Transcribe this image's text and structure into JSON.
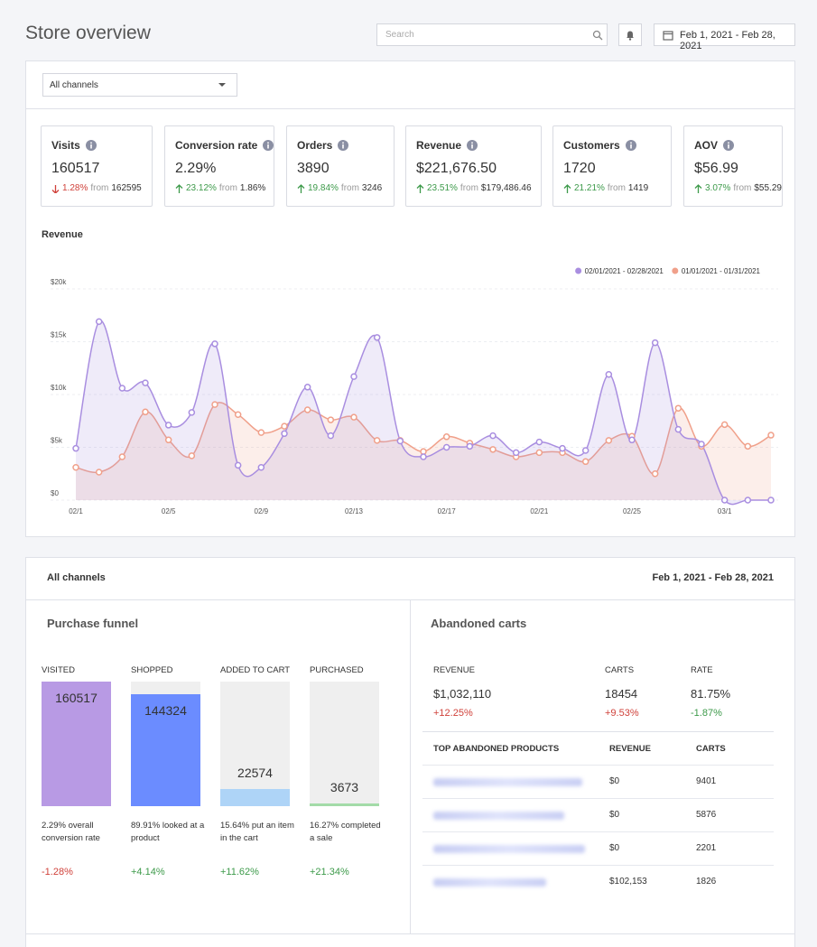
{
  "header": {
    "title": "Store overview",
    "search_placeholder": "Search",
    "date_range": "Feb 1, 2021 - Feb 28, 2021"
  },
  "filter": {
    "channel": "All channels"
  },
  "kpis": [
    {
      "title": "Visits",
      "value": "160517",
      "direction": "down",
      "change": "1.28%",
      "change_color": "#d0413a",
      "from": "from",
      "previous": "162595"
    },
    {
      "title": "Conversion rate",
      "value": "2.29%",
      "direction": "up",
      "change": "23.12%",
      "change_color": "#3d9a4a",
      "from": "from",
      "previous": "1.86%"
    },
    {
      "title": "Orders",
      "value": "3890",
      "direction": "up",
      "change": "19.84%",
      "change_color": "#3d9a4a",
      "from": "from",
      "previous": "3246"
    },
    {
      "title": "Revenue",
      "value": "$221,676.50",
      "direction": "up",
      "change": "23.51%",
      "change_color": "#3d9a4a",
      "from": "from",
      "previous": "$179,486.46"
    },
    {
      "title": "Customers",
      "value": "1720",
      "direction": "up",
      "change": "21.21%",
      "change_color": "#3d9a4a",
      "from": "from",
      "previous": "1419"
    },
    {
      "title": "AOV",
      "value": "$56.99",
      "direction": "up",
      "change": "3.07%",
      "change_color": "#3d9a4a",
      "from": "from",
      "previous": "$55.29"
    }
  ],
  "chart_data": {
    "type": "line",
    "title": "Revenue",
    "categories": [
      "02/1",
      null,
      null,
      null,
      "02/5",
      null,
      null,
      null,
      "02/9",
      null,
      null,
      null,
      "02/13",
      null,
      null,
      null,
      "02/17",
      null,
      null,
      null,
      "02/21",
      null,
      null,
      null,
      "02/25",
      null,
      null,
      null,
      "03/1",
      null,
      null
    ],
    "series": [
      {
        "name": "02/01/2021 - 02/28/2021",
        "color": "#a98ee0",
        "values": [
          4900,
          16900,
          10600,
          11100,
          7100,
          8300,
          14800,
          3300,
          3100,
          6300,
          10700,
          6100,
          11700,
          15400,
          5600,
          4100,
          5000,
          5100,
          6100,
          4500,
          5500,
          4900,
          4700,
          11900,
          5700,
          14900,
          6700,
          5300,
          0,
          0,
          0
        ]
      },
      {
        "name": "01/01/2021 - 01/31/2021",
        "color": "#f0a08a",
        "values": [
          3100,
          2650,
          4100,
          8350,
          5700,
          4200,
          9050,
          8100,
          6400,
          7000,
          8550,
          7600,
          7850,
          5650,
          5650,
          4600,
          6000,
          5400,
          4800,
          4100,
          4500,
          4500,
          3650,
          5650,
          6050,
          2500,
          8700,
          5100,
          7150,
          5100,
          6150
        ]
      }
    ],
    "ylim": [
      0,
      20000
    ],
    "yticks": [
      {
        "value": 0,
        "label": "$0"
      },
      {
        "value": 5000,
        "label": "$5k"
      },
      {
        "value": 10000,
        "label": "$10k"
      },
      {
        "value": 15000,
        "label": "$15k"
      },
      {
        "value": 20000,
        "label": "$20k"
      }
    ],
    "grid": true,
    "legend": "top-right",
    "area": true,
    "smooth": true
  },
  "report": {
    "channel": "All channels",
    "date_range": "Feb 1, 2021 - Feb 28, 2021"
  },
  "funnel": {
    "title": "Purchase funnel",
    "steps": [
      {
        "label": "VISITED",
        "value": 160517,
        "color": "#b89ae4",
        "description": "2.29% overall conversion rate",
        "change": "-1.28%",
        "change_color": "#d0413a"
      },
      {
        "label": "SHOPPED",
        "value": 144324,
        "color": "#6b8cff",
        "description": "89.91% looked at a product",
        "change": "+4.14%",
        "change_color": "#3d9a4a"
      },
      {
        "label": "ADDED TO CART",
        "value": 22574,
        "color": "#aed4f7",
        "description": "15.64% put an item in the cart",
        "change": "+11.62%",
        "change_color": "#3d9a4a"
      },
      {
        "label": "PURCHASED",
        "value": 3673,
        "color": "#a3dba8",
        "description": "16.27% completed a sale",
        "change": "+21.34%",
        "change_color": "#3d9a4a"
      }
    ]
  },
  "abandoned": {
    "title": "Abandoned carts",
    "metrics": [
      {
        "label": "REVENUE",
        "value": "$1,032,110",
        "change": "+12.25%",
        "change_color": "#d0413a"
      },
      {
        "label": "CARTS",
        "value": "18454",
        "change": "+9.53%",
        "change_color": "#d0413a"
      },
      {
        "label": "RATE",
        "value": "81.75%",
        "change": "-1.87%",
        "change_color": "#3d9a4a"
      }
    ],
    "table": {
      "columns": [
        "TOP ABANDONED PRODUCTS",
        "REVENUE",
        "CARTS"
      ],
      "rows": [
        {
          "revenue": "$0",
          "carts": "9401"
        },
        {
          "revenue": "$0",
          "carts": "5876"
        },
        {
          "revenue": "$0",
          "carts": "2201"
        },
        {
          "revenue": "$102,153",
          "carts": "1826"
        }
      ]
    }
  }
}
